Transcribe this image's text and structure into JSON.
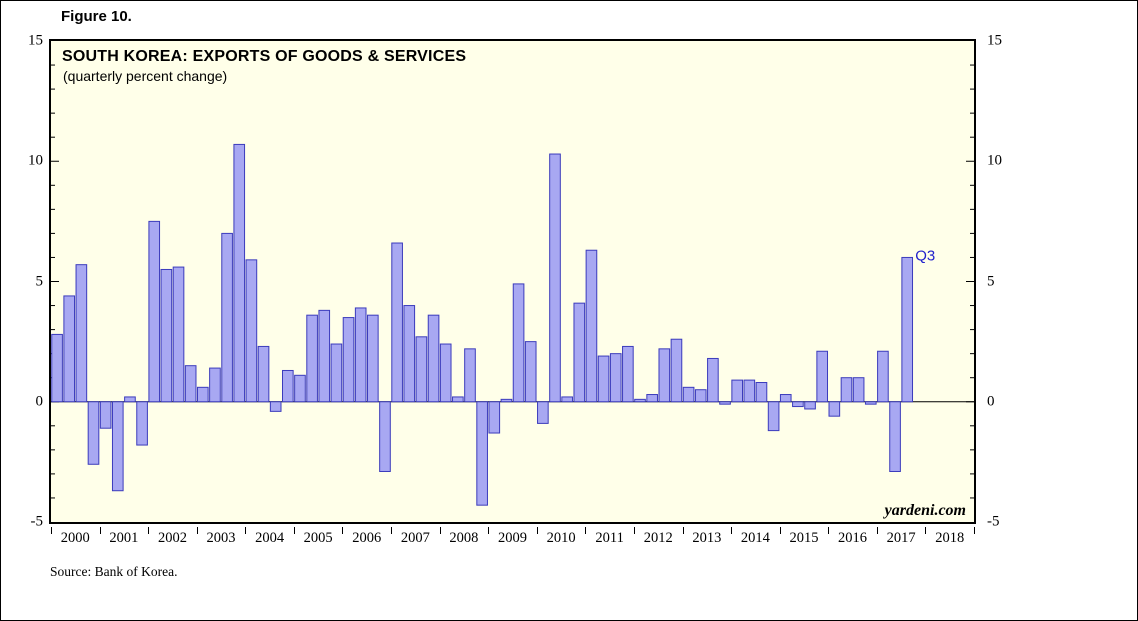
{
  "figure_label": "Figure 10.",
  "watermark": "yardeni.com",
  "source_note": "Source: Bank of Korea.",
  "chart_data": {
    "type": "bar",
    "title": "SOUTH KOREA: EXPORTS OF GOODS & SERVICES",
    "subtitle": "(quarterly percent change)",
    "start_year": 2000,
    "x_years": [
      "2000",
      "2001",
      "2002",
      "2003",
      "2004",
      "2005",
      "2006",
      "2007",
      "2008",
      "2009",
      "2010",
      "2011",
      "2012",
      "2013",
      "2014",
      "2015",
      "2016",
      "2017",
      "2018"
    ],
    "ylim": [
      -5,
      15
    ],
    "yticks": [
      -5,
      0,
      5,
      10,
      15
    ],
    "last_point_label": "Q3",
    "values": [
      2.8,
      4.4,
      5.7,
      -2.6,
      -1.1,
      -3.7,
      0.2,
      -1.8,
      7.5,
      5.5,
      5.6,
      1.5,
      0.6,
      1.4,
      7.0,
      10.7,
      5.9,
      2.3,
      -0.4,
      1.3,
      1.1,
      3.6,
      3.8,
      2.4,
      3.5,
      3.9,
      3.6,
      -2.9,
      6.6,
      4.0,
      2.7,
      3.6,
      2.4,
      0.2,
      2.2,
      -4.3,
      -1.3,
      0.1,
      4.9,
      2.5,
      -0.9,
      10.3,
      0.2,
      4.1,
      6.3,
      1.9,
      2.0,
      2.3,
      0.1,
      0.3,
      2.2,
      2.6,
      0.6,
      0.5,
      1.8,
      -0.1,
      0.9,
      0.9,
      0.8,
      -1.2,
      0.3,
      -0.2,
      -0.3,
      2.1,
      -0.6,
      1.0,
      1.0,
      -0.1,
      2.1,
      -2.9,
      6.0
    ],
    "colors": {
      "bar_fill": "#a8a8f2",
      "bar_border": "#3b3bbc",
      "plot_bg": "#ffffe9",
      "annotation": "#2222cc",
      "axis": "#000000"
    }
  }
}
